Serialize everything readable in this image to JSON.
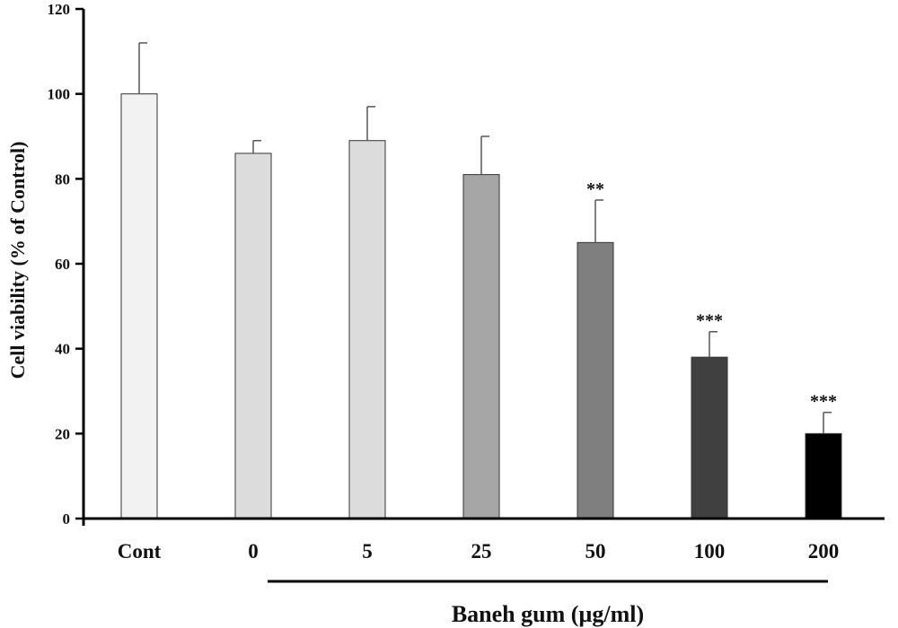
{
  "chart_data": {
    "type": "bar",
    "categories": [
      "Cont",
      "0",
      "5",
      "25",
      "50",
      "100",
      "200"
    ],
    "values": [
      100,
      86,
      89,
      81,
      65,
      38,
      20
    ],
    "errors": [
      12,
      3,
      8,
      9,
      10,
      6,
      5
    ],
    "significance": [
      "",
      "",
      "",
      "",
      "**",
      "***",
      "***"
    ],
    "bar_colors": [
      "#f2f2f2",
      "#dcdcdc",
      "#dcdcdc",
      "#a6a6a6",
      "#7f7f7f",
      "#404040",
      "#000000"
    ],
    "ylabel": "Cell viability (% of Control)",
    "xlabel": "Baneh gum (µg/ml)",
    "ylim": [
      0,
      120
    ],
    "yticks": [
      0,
      20,
      40,
      60,
      80,
      100,
      120
    ],
    "grid": false
  }
}
